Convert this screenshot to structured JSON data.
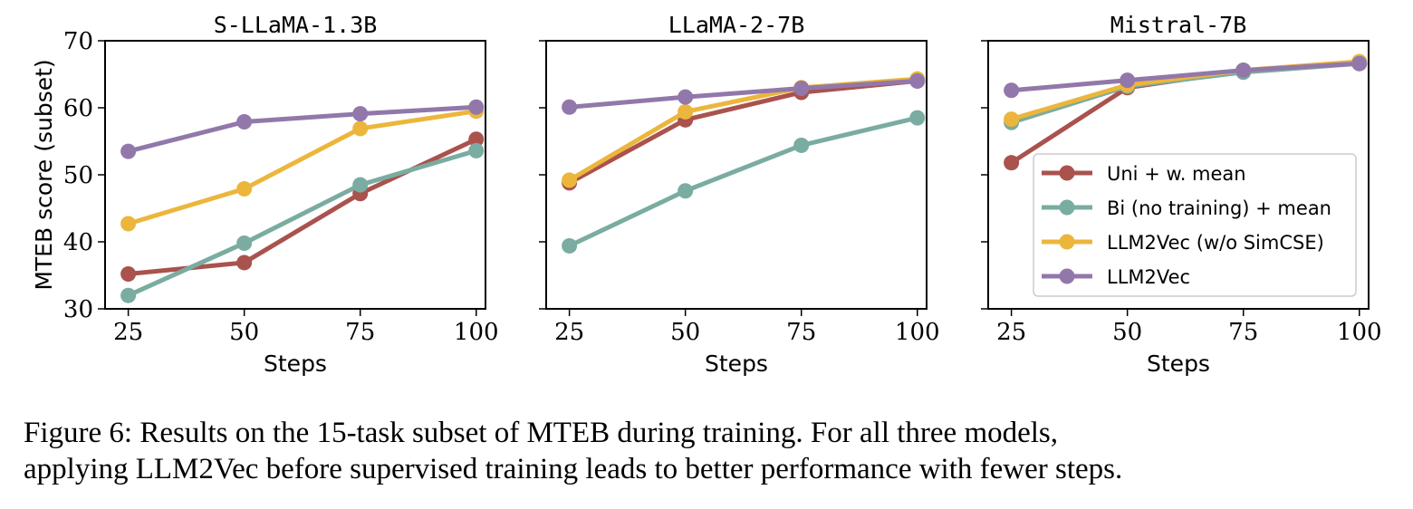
{
  "figure": {
    "caption_lines": [
      "Figure 6: Results on the 15-task subset of MTEB during training.  For all three models,",
      "applying LLM2Vec before supervised training leads to better performance with fewer steps."
    ]
  },
  "colors": {
    "uni": "#a9524e",
    "bi": "#7aaca1",
    "llm2vec_wo": "#ecb63c",
    "llm2vec": "#9278aa"
  },
  "chart_data": [
    {
      "type": "line",
      "title": "S-LLaMA-1.3B",
      "xlabel": "Steps",
      "ylabel": "MTEB score (subset)",
      "x": [
        25,
        50,
        75,
        100
      ],
      "xticks": [
        "25",
        "50",
        "75",
        "100"
      ],
      "yticks": [
        "30",
        "40",
        "50",
        "60",
        "70"
      ],
      "ylim": [
        30,
        70
      ],
      "series": [
        {
          "name": "Uni + w. mean",
          "color": "#a9524e",
          "values": [
            35.2,
            36.9,
            47.2,
            55.3
          ]
        },
        {
          "name": "Bi (no training) + mean",
          "color": "#7aaca1",
          "values": [
            32.0,
            39.8,
            48.5,
            53.6
          ]
        },
        {
          "name": "LLM2Vec (w/o SimCSE)",
          "color": "#ecb63c",
          "values": [
            42.7,
            47.9,
            56.9,
            59.5
          ]
        },
        {
          "name": "LLM2Vec",
          "color": "#9278aa",
          "values": [
            53.5,
            57.9,
            59.1,
            60.1
          ]
        }
      ]
    },
    {
      "type": "line",
      "title": "LLaMA-2-7B",
      "xlabel": "Steps",
      "ylabel": "",
      "x": [
        25,
        50,
        75,
        100
      ],
      "xticks": [
        "25",
        "50",
        "75",
        "100"
      ],
      "ylim": [
        30,
        70
      ],
      "series": [
        {
          "name": "Uni + w. mean",
          "color": "#a9524e",
          "values": [
            48.8,
            58.2,
            62.3,
            64.0
          ]
        },
        {
          "name": "Bi (no training) + mean",
          "color": "#7aaca1",
          "values": [
            39.4,
            47.6,
            54.4,
            58.5
          ]
        },
        {
          "name": "LLM2Vec (w/o SimCSE)",
          "color": "#ecb63c",
          "values": [
            49.2,
            59.4,
            63.0,
            64.3
          ]
        },
        {
          "name": "LLM2Vec",
          "color": "#9278aa",
          "values": [
            60.1,
            61.6,
            62.9,
            64.0
          ]
        }
      ]
    },
    {
      "type": "line",
      "title": "Mistral-7B",
      "xlabel": "Steps",
      "ylabel": "",
      "x": [
        25,
        50,
        75,
        100
      ],
      "xticks": [
        "25",
        "50",
        "75",
        "100"
      ],
      "ylim": [
        30,
        70
      ],
      "legend": "center-right",
      "series": [
        {
          "name": "Uni + w. mean",
          "color": "#a9524e",
          "values": [
            51.8,
            63.0,
            65.5,
            66.6
          ]
        },
        {
          "name": "Bi (no training) + mean",
          "color": "#7aaca1",
          "values": [
            57.8,
            63.2,
            65.3,
            66.6
          ]
        },
        {
          "name": "LLM2Vec (w/o SimCSE)",
          "color": "#ecb63c",
          "values": [
            58.3,
            63.4,
            65.6,
            66.9
          ]
        },
        {
          "name": "LLM2Vec",
          "color": "#9278aa",
          "values": [
            62.6,
            64.1,
            65.6,
            66.6
          ]
        }
      ]
    }
  ]
}
